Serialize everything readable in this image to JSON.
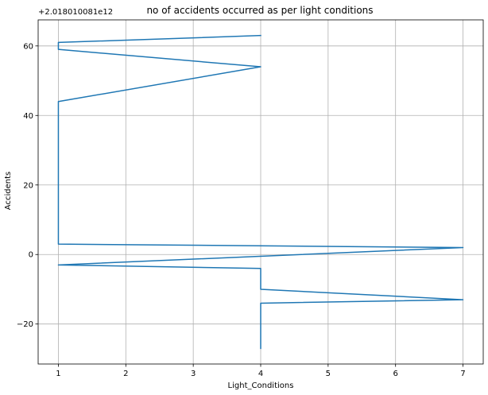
{
  "chart_data": {
    "type": "line",
    "title": "no of accidents occurred as per light conditions",
    "xlabel": "Light_Conditions",
    "ylabel": "Accidents",
    "y_offset_label": "+2.018010081e12",
    "xlim": [
      0.7,
      7.3
    ],
    "ylim": [
      -31.5,
      67.5
    ],
    "x_ticks": [
      1,
      2,
      3,
      4,
      5,
      6,
      7
    ],
    "y_ticks": [
      -20,
      0,
      20,
      40,
      60
    ],
    "grid": true,
    "series": [
      {
        "color": "#1f77b4",
        "points": [
          [
            4,
            63
          ],
          [
            1,
            61
          ],
          [
            1,
            59
          ],
          [
            4,
            54
          ],
          [
            1,
            44
          ],
          [
            1,
            3
          ],
          [
            7,
            2
          ],
          [
            1,
            -3
          ],
          [
            4,
            -4
          ],
          [
            4,
            -10
          ],
          [
            7,
            -13
          ],
          [
            4,
            -14
          ],
          [
            4,
            -27
          ]
        ]
      }
    ]
  }
}
